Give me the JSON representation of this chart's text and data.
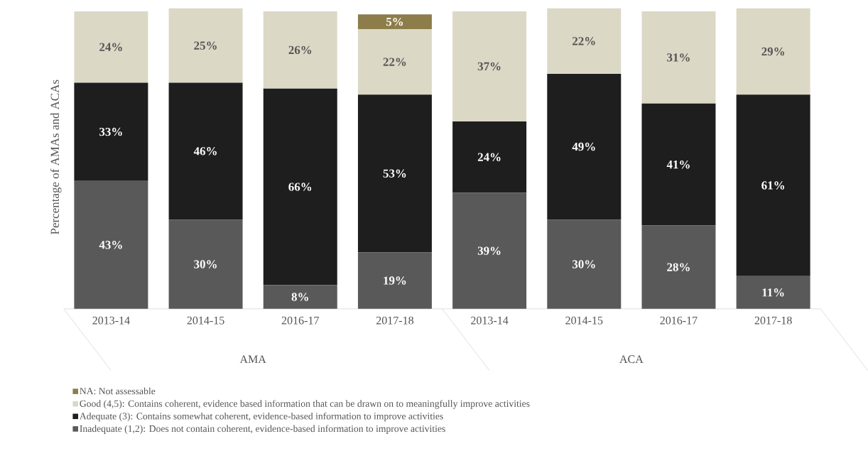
{
  "chart_data": {
    "type": "bar",
    "stacked": true,
    "ylabel": "Percentage of AMAs and ACAs",
    "categories": [
      "2013-14",
      "2014-15",
      "2016-17",
      "2017-18",
      "2013-14",
      "2014-15",
      "2016-17",
      "2017-18"
    ],
    "annotations": [
      "AMA",
      "ACA"
    ],
    "legend": "bottom",
    "series": [
      {
        "name": "Inadequate (1,2): Does not contain coherent, evidence-based information to improve activities",
        "color": "#595959",
        "values": [
          43,
          30,
          8,
          19,
          39,
          30,
          28,
          11
        ],
        "value_labels": [
          "43%",
          "30%",
          "8%",
          "19%",
          "39%",
          "30%",
          "28%",
          "11%"
        ]
      },
      {
        "name": "Adequate (3): Contains somewhat coherent, evidence-based information to improve activities",
        "color": "#1e1e1e",
        "values": [
          33,
          46,
          66,
          53,
          24,
          49,
          41,
          61
        ],
        "value_labels": [
          "33%",
          "46%",
          "66%",
          "53%",
          "24%",
          "49%",
          "41%",
          "61%"
        ]
      },
      {
        "name": "Good (4,5): Contains coherent, evidence based information that can be drawn on to meaningfully improve activities",
        "color": "#dcd8c6",
        "values": [
          24,
          25,
          26,
          22,
          37,
          22,
          31,
          29
        ],
        "value_labels": [
          "24%",
          "25%",
          "26%",
          "22%",
          "37%",
          "22%",
          "31%",
          "29%"
        ]
      },
      {
        "name": "NA: Not assessable",
        "color": "#8c7d4a",
        "values": [
          null,
          null,
          null,
          5,
          null,
          null,
          null,
          null
        ],
        "value_labels": [
          null,
          null,
          null,
          "5%",
          null,
          null,
          null,
          null
        ]
      }
    ]
  }
}
